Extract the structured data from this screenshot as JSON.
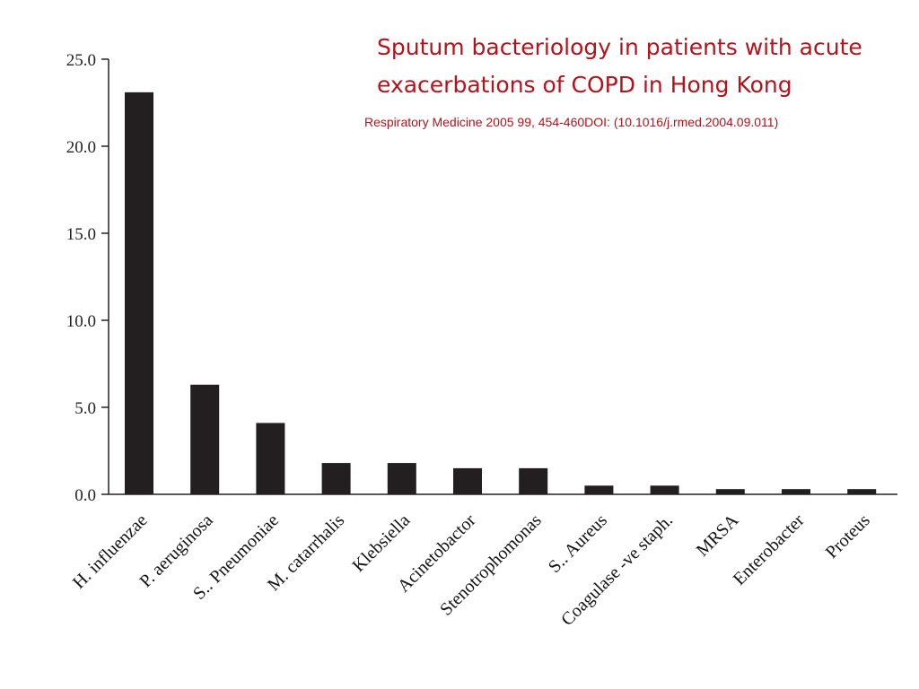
{
  "title": {
    "line1": "Sputum bacteriology in patients with acute",
    "line2": "exacerbations of COPD in Hong Kong"
  },
  "citation": "Respiratory Medicine 2005 99, 454-460DOI: (10.1016/j.rmed.2004.09.011)",
  "colors": {
    "title": "#b5121b",
    "bar": "#231f20",
    "axis": "#222222"
  },
  "chart_data": {
    "type": "bar",
    "categories": [
      "H. influenzae",
      "P. aeruginosa",
      "S.. Pneumoniae",
      "M. catarrhalis",
      "Klebsiella",
      "Acinetobactor",
      "Stenotrophomonas",
      "S.. Aureus",
      "Coagulase -ve staph.",
      "MRSA",
      "Enterobacter",
      "Proteus"
    ],
    "values": [
      23.1,
      6.3,
      4.1,
      1.8,
      1.8,
      1.5,
      1.5,
      0.5,
      0.5,
      0.3,
      0.3,
      0.3
    ],
    "yticks": [
      "0.0",
      "5.0",
      "10.0",
      "15.0",
      "20.0",
      "25.0"
    ],
    "ylim": [
      0,
      25
    ],
    "xlabel": "",
    "ylabel": "",
    "grid": false,
    "legend": "none"
  }
}
